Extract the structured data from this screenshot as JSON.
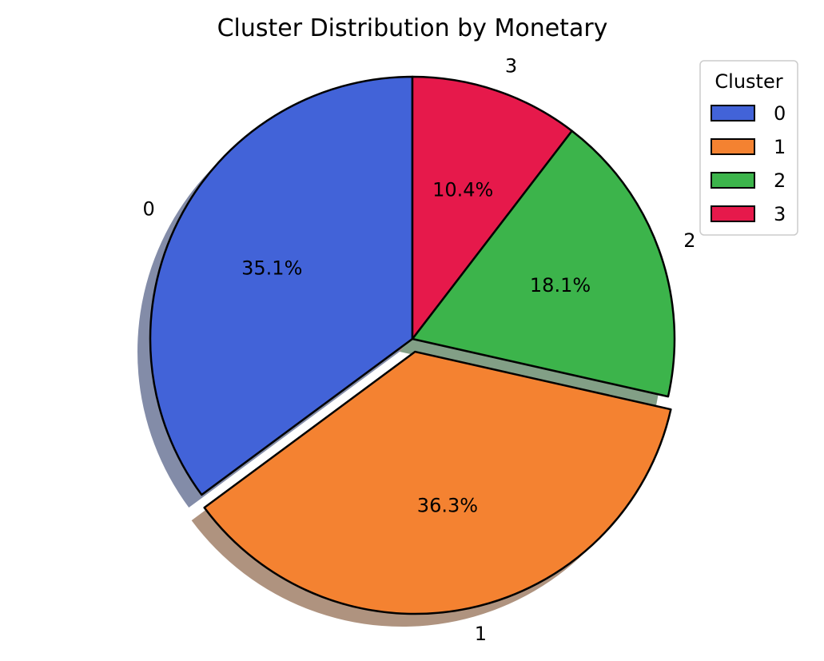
{
  "chart_data": {
    "type": "pie",
    "title": "Cluster Distribution by Monetary",
    "categories": [
      "0",
      "1",
      "2",
      "3"
    ],
    "values": [
      35.1,
      36.3,
      18.1,
      10.4
    ],
    "percent_labels": [
      "35.1%",
      "36.3%",
      "18.1%",
      "10.4%"
    ],
    "colors": [
      "#4263d8",
      "#f48231",
      "#3cb44b",
      "#e6194b"
    ],
    "start_angle_deg": 90,
    "direction": "counterclockwise",
    "explode": [
      0,
      0.05,
      0,
      0
    ],
    "shadow": true,
    "legend": {
      "title": "Cluster",
      "entries": [
        "0",
        "1",
        "2",
        "3"
      ],
      "placement": "top-right"
    }
  }
}
